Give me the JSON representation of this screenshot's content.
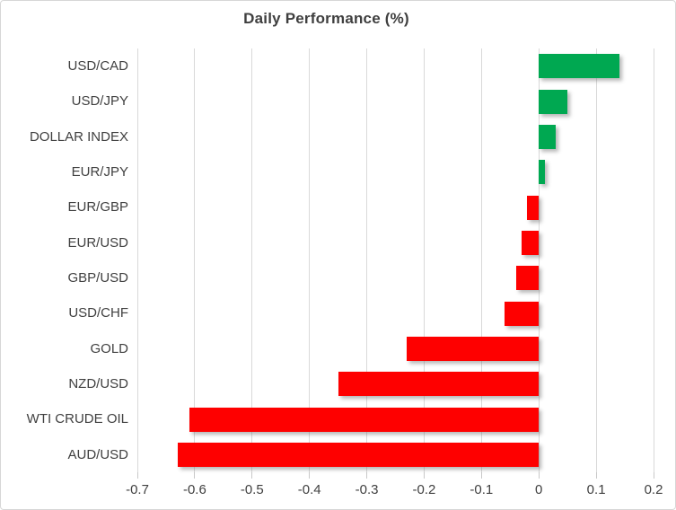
{
  "chart_data": {
    "type": "bar",
    "orientation": "horizontal",
    "title": "Daily Performance (%)",
    "categories": [
      "USD/CAD",
      "USD/JPY",
      "DOLLAR INDEX",
      "EUR/JPY",
      "EUR/GBP",
      "EUR/USD",
      "GBP/USD",
      "USD/CHF",
      "GOLD",
      "NZD/USD",
      "WTI CRUDE OIL",
      "AUD/USD"
    ],
    "values": [
      0.14,
      0.05,
      0.03,
      0.01,
      -0.02,
      -0.03,
      -0.04,
      -0.06,
      -0.23,
      -0.35,
      -0.61,
      -0.63
    ],
    "xlabel": "",
    "ylabel": "",
    "xlim": [
      -0.7,
      0.2
    ],
    "xticks": [
      -0.7,
      -0.6,
      -0.5,
      -0.4,
      -0.3,
      -0.2,
      -0.1,
      0,
      0.1,
      0.2
    ],
    "xtick_labels": [
      "-0.7",
      "-0.6",
      "-0.5",
      "-0.4",
      "-0.3",
      "-0.2",
      "-0.1",
      "0",
      "0.1",
      "0.2"
    ],
    "grid": true,
    "legend": "none",
    "positive_color": "#00a851",
    "negative_color": "#fe0000",
    "gridline_color": "#d9d9d9",
    "title_color": "#3f3f3f",
    "label_color": "#404040"
  }
}
